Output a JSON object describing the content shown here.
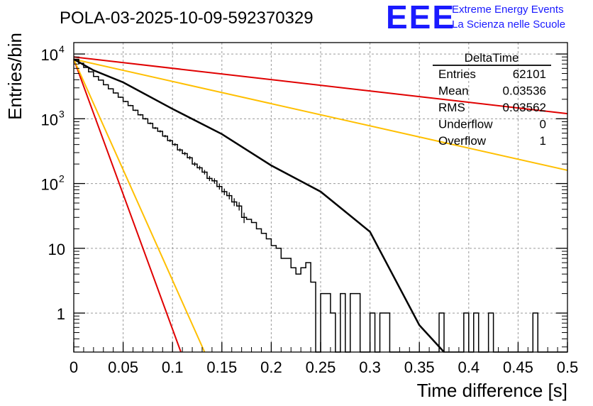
{
  "chart_data": {
    "type": "histogram",
    "title": "POLA-03-2025-10-09-592370329",
    "xlabel": "Time difference [s]",
    "ylabel": "Entries/bin",
    "xlim": [
      0,
      0.5
    ],
    "ylim": [
      0.25,
      15000
    ],
    "yscale": "log",
    "grid": true,
    "x_ticks": [
      "0",
      "0.05",
      "0.1",
      "0.15",
      "0.2",
      "0.25",
      "0.3",
      "0.35",
      "0.4",
      "0.45",
      "0.5"
    ],
    "x_tick_values": [
      0,
      0.05,
      0.1,
      0.15,
      0.2,
      0.25,
      0.3,
      0.35,
      0.4,
      0.45,
      0.5
    ],
    "y_ticks": [
      {
        "value": 1,
        "base": "1",
        "exp": ""
      },
      {
        "value": 10,
        "base": "10",
        "exp": ""
      },
      {
        "value": 100,
        "base": "10",
        "exp": "2"
      },
      {
        "value": 1000,
        "base": "10",
        "exp": "3"
      },
      {
        "value": 10000,
        "base": "10",
        "exp": "4"
      }
    ],
    "bin_width": 0.005,
    "bin_counts": [
      8300,
      7200,
      6200,
      5300,
      4500,
      3950,
      3350,
      2900,
      2500,
      2150,
      1850,
      1600,
      1350,
      1150,
      1000,
      850,
      720,
      640,
      540,
      460,
      400,
      330,
      290,
      250,
      200,
      175,
      150,
      120,
      110,
      90,
      75,
      65,
      52,
      45,
      30,
      28,
      25,
      20,
      17,
      14,
      11,
      10,
      7,
      7,
      5,
      4,
      5,
      6,
      3,
      0,
      2,
      2,
      1,
      0,
      2,
      0,
      2,
      2,
      0,
      0,
      1,
      0,
      1,
      1,
      0,
      0,
      0,
      0,
      0,
      0,
      0,
      0,
      0,
      0,
      1,
      0,
      0,
      0,
      0,
      1,
      0,
      1,
      0,
      0,
      1,
      0,
      0,
      0,
      0,
      0,
      0,
      0,
      0,
      1,
      0,
      0,
      0,
      0,
      0,
      0
    ],
    "fit_points": [
      {
        "x": 0,
        "y": 8300
      },
      {
        "x": 0.02,
        "y": 5600
      },
      {
        "x": 0.05,
        "y": 3650
      },
      {
        "x": 0.1,
        "y": 1420
      },
      {
        "x": 0.15,
        "y": 580
      },
      {
        "x": 0.2,
        "y": 190
      },
      {
        "x": 0.25,
        "y": 75
      },
      {
        "x": 0.3,
        "y": 18
      },
      {
        "x": 0.35,
        "y": 0.65
      },
      {
        "x": 0.375,
        "y": 0.25
      }
    ],
    "lines": [
      {
        "name": "red-slow",
        "color": "#e00000",
        "points": [
          {
            "x": 0,
            "y": 9000
          },
          {
            "x": 0.5,
            "y": 1200
          }
        ]
      },
      {
        "name": "orange-slow",
        "color": "#ffbf00",
        "points": [
          {
            "x": 0,
            "y": 8300
          },
          {
            "x": 0.5,
            "y": 160
          }
        ]
      },
      {
        "name": "red-fast",
        "color": "#e00000",
        "points": [
          {
            "x": 0,
            "y": 8300
          },
          {
            "x": 0.1085,
            "y": 0.25
          }
        ]
      },
      {
        "name": "orange-fast",
        "color": "#ffbf00",
        "points": [
          {
            "x": 0,
            "y": 8300
          },
          {
            "x": 0.1325,
            "y": 0.25
          }
        ]
      }
    ],
    "stats_box": {
      "title": "DeltaTime",
      "rows": [
        {
          "label": "Entries",
          "value": "62101"
        },
        {
          "label": "Mean",
          "value": "0.03536"
        },
        {
          "label": "RMS",
          "value": "0.03562"
        },
        {
          "label": "Underflow",
          "value": "0"
        },
        {
          "label": "Overflow",
          "value": "1"
        }
      ]
    }
  },
  "logo": {
    "mark": "EEE",
    "line1": "Extreme Energy Events",
    "line2": "La Scienza nelle Scuole",
    "color": "#1a1aff"
  }
}
